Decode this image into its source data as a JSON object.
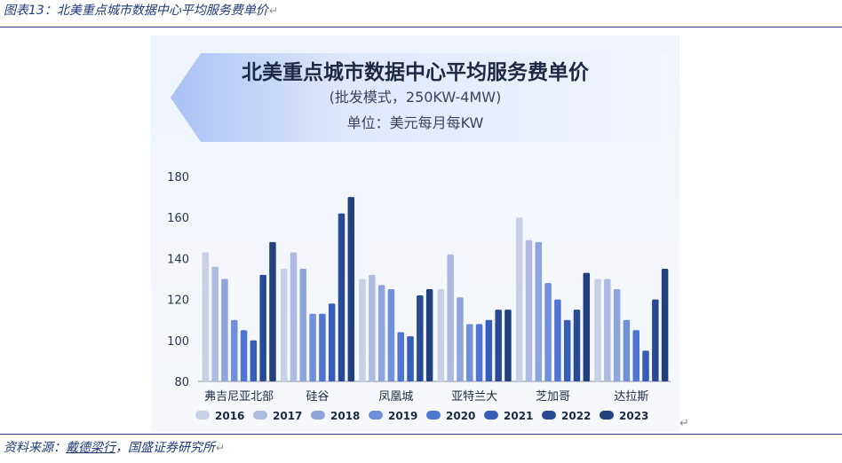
{
  "figure_caption": "图表13：北美重点城市数据中心平均服务费单价",
  "source_prefix": "资料来源：",
  "source_link": "戴德梁行",
  "source_suffix": "，国盛证券研究所",
  "return_mark": "↵",
  "colors": {
    "rule": "#1f3a7a",
    "series": [
      "#c9d0e6",
      "#aebbe0",
      "#8ea4dc",
      "#7190dc",
      "#4f75d2",
      "#365db8",
      "#284994",
      "#23407e"
    ]
  },
  "chart_data": {
    "type": "bar",
    "title": "北美重点城市数据中心平均服务费单价",
    "subtitle": "(批发模式，250KW-4MW)",
    "unit": "单位：美元每月每KW",
    "categories": [
      "弗吉尼亚北部",
      "硅谷",
      "凤凰城",
      "亚特兰大",
      "芝加哥",
      "达拉斯"
    ],
    "ylim": [
      80,
      180
    ],
    "yticks": [
      "80",
      "100",
      "120",
      "140",
      "160",
      "180"
    ],
    "legend_position": "bottom",
    "series": [
      {
        "name": "2016",
        "values": [
          143,
          135,
          130,
          125,
          160,
          130
        ]
      },
      {
        "name": "2017",
        "values": [
          136,
          143,
          132,
          142,
          149,
          130
        ]
      },
      {
        "name": "2018",
        "values": [
          130,
          135,
          127,
          121,
          148,
          125
        ]
      },
      {
        "name": "2019",
        "values": [
          110,
          113,
          125,
          108,
          128,
          110
        ]
      },
      {
        "name": "2020",
        "values": [
          105,
          113,
          104,
          108,
          120,
          105
        ]
      },
      {
        "name": "2021",
        "values": [
          100,
          118,
          102,
          110,
          110,
          95
        ]
      },
      {
        "name": "2022",
        "values": [
          132,
          162,
          122,
          115,
          115,
          120
        ]
      },
      {
        "name": "2023",
        "values": [
          148,
          170,
          125,
          115,
          133,
          135
        ]
      }
    ]
  }
}
